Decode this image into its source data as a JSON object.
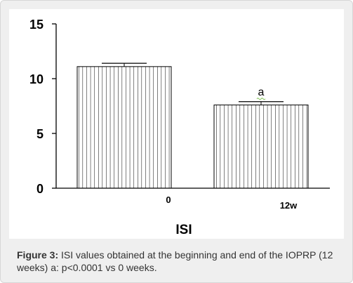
{
  "chart_data": {
    "type": "bar",
    "title": "",
    "xlabel": "ISI",
    "ylabel": "",
    "categories": [
      "0",
      "12w"
    ],
    "values": [
      11.1,
      7.6
    ],
    "error_tops": [
      11.4,
      7.9
    ],
    "annotations": [
      {
        "category": "12w",
        "text": "a"
      }
    ],
    "ylim": [
      0,
      15
    ],
    "yticks": [
      0,
      5,
      10,
      15
    ],
    "grid": false,
    "bar_pattern": "vertical-hatch",
    "colors": {
      "bar_stroke": "#000000",
      "bar_fill": "#ffffff",
      "annotation_underline": "#7bbf4e"
    }
  },
  "caption": {
    "label": "Figure 3:",
    "text": " ISI values obtained at the beginning and end of the IOPRP (12 weeks) a: p<0.0001 vs 0 weeks."
  }
}
